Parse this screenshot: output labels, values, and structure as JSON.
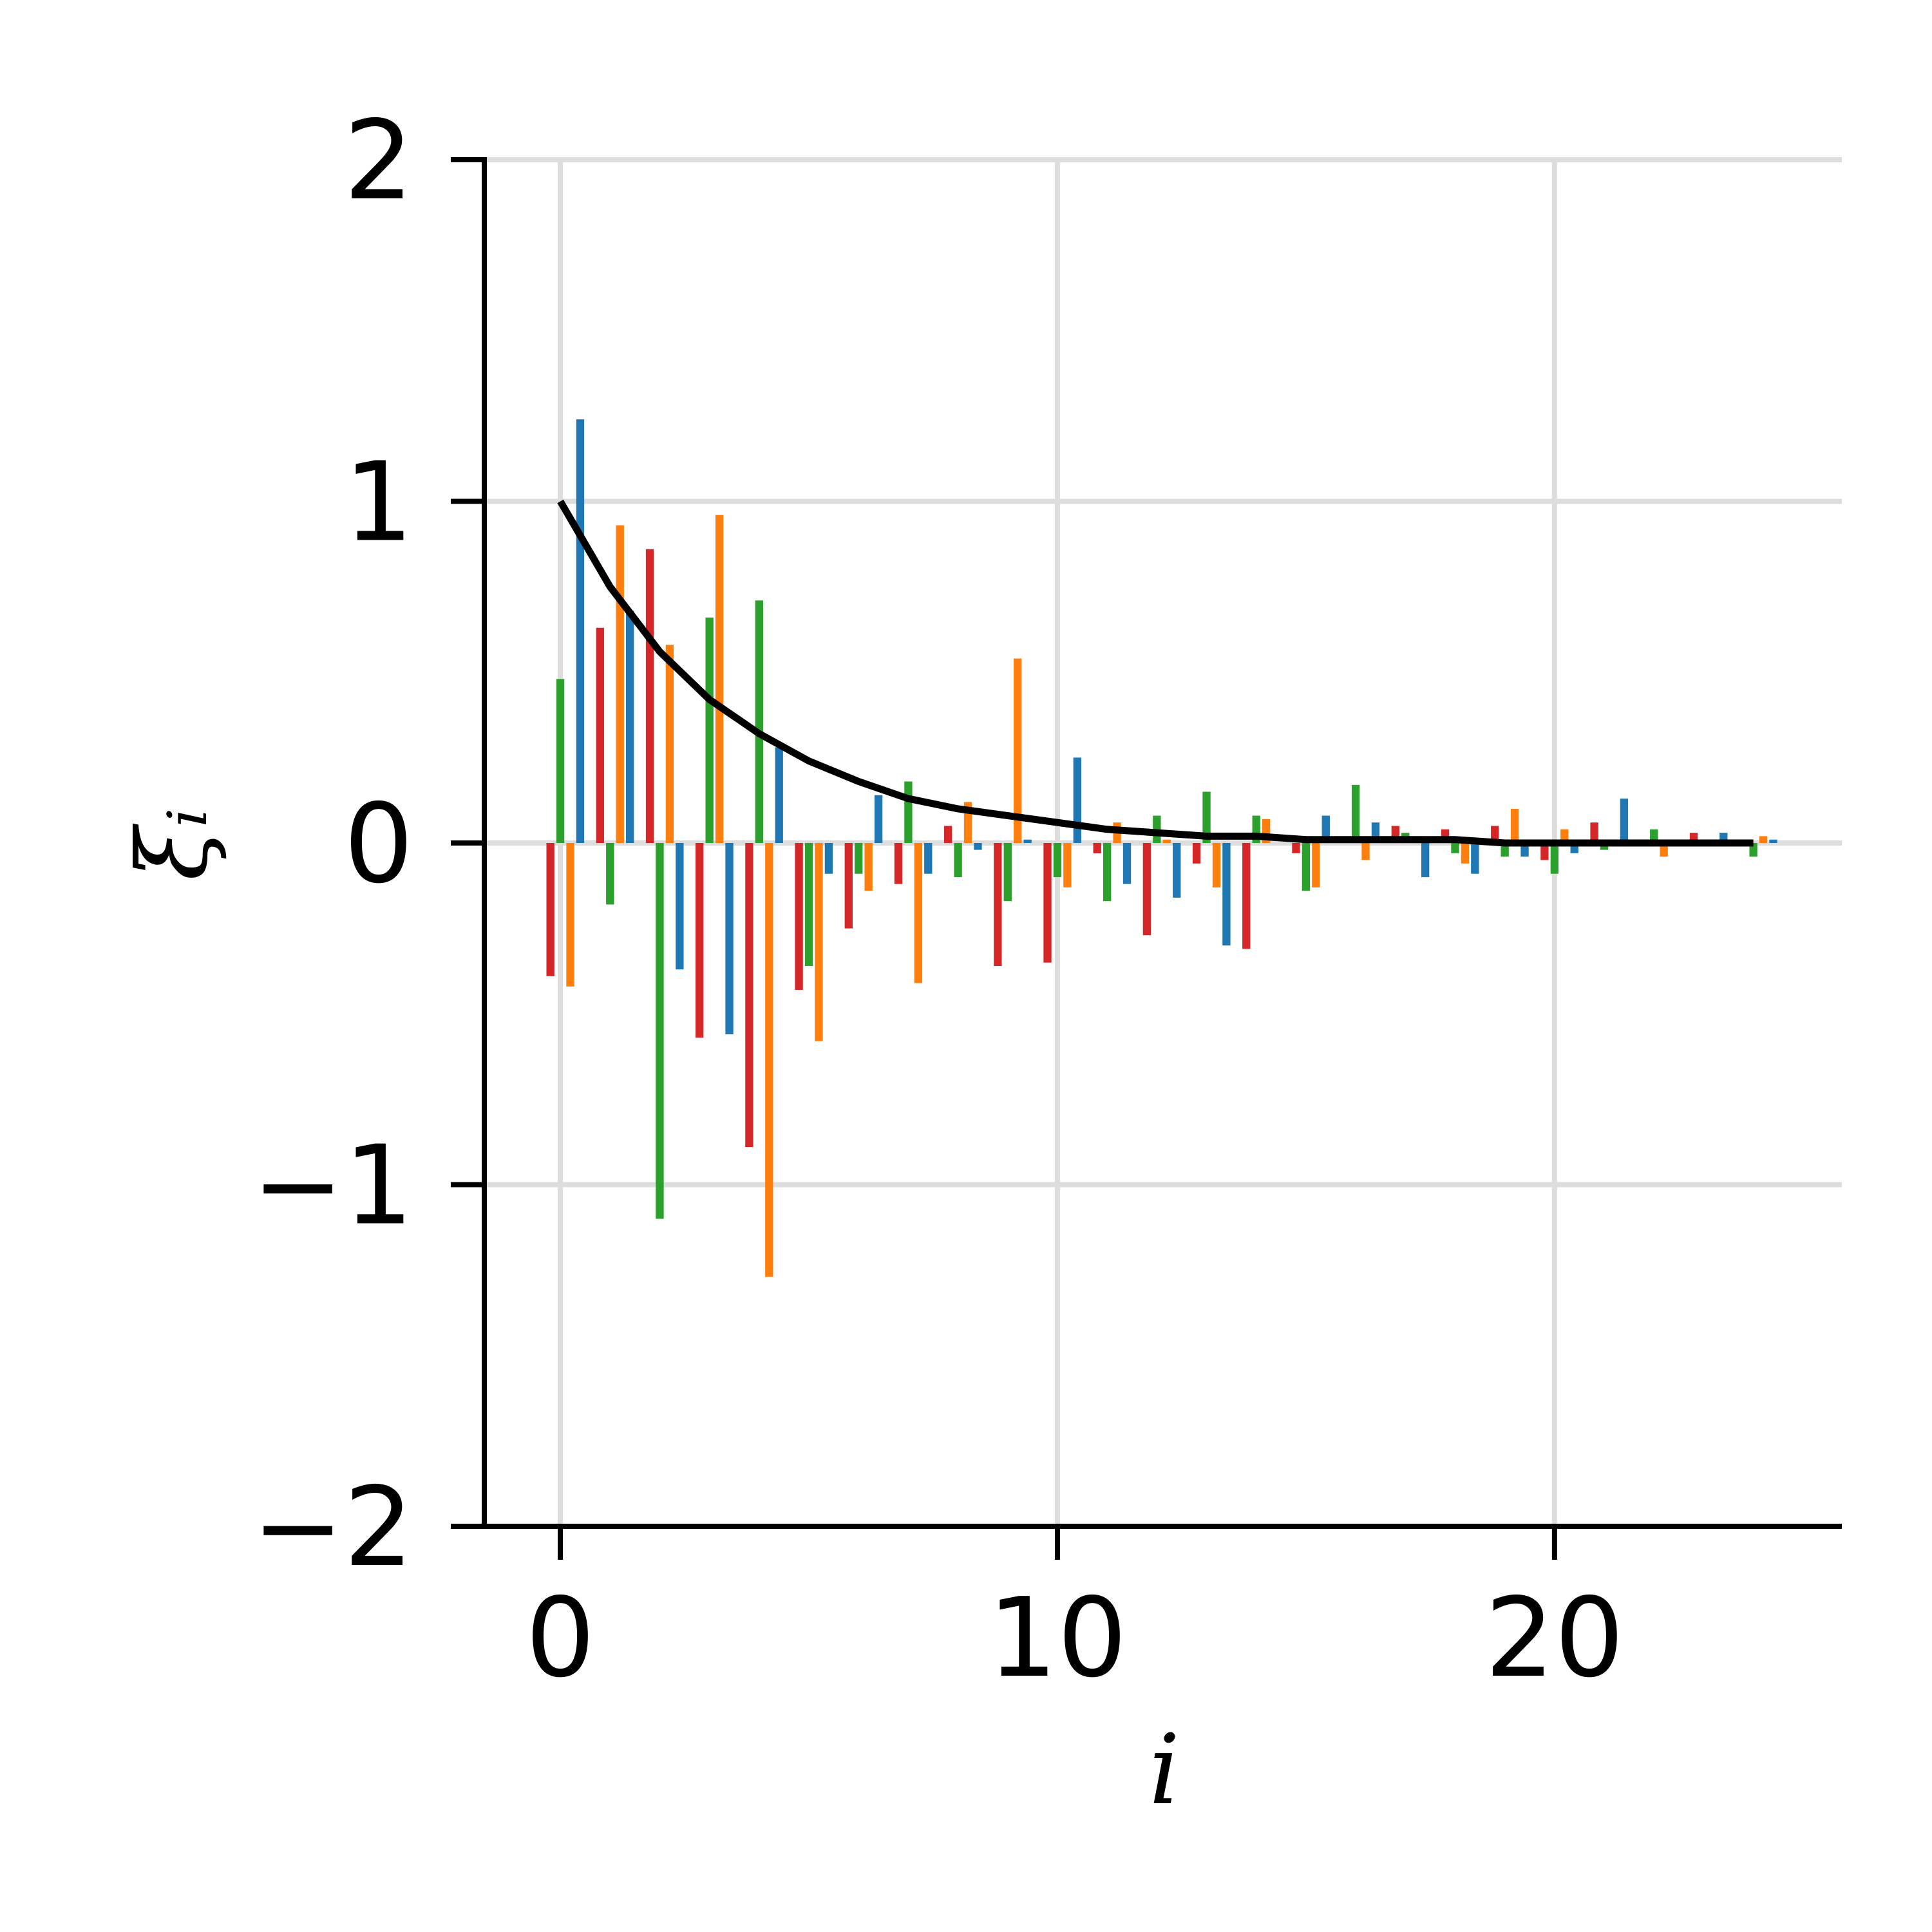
{
  "chart_data": {
    "type": "bar",
    "x_label": "i",
    "y_label": "ξᵢ",
    "categories": [
      0,
      1,
      2,
      3,
      4,
      5,
      6,
      7,
      8,
      9,
      10,
      11,
      12,
      13,
      14,
      15,
      16,
      17,
      18,
      19,
      20,
      21,
      22,
      23,
      24
    ],
    "series": [
      {
        "color": "#d62728",
        "values": [
          -0.39,
          0.63,
          0.86,
          -0.57,
          -0.89,
          -0.43,
          -0.25,
          -0.12,
          0.05,
          -0.36,
          -0.35,
          -0.03,
          -0.27,
          -0.06,
          -0.31,
          -0.03,
          0,
          0.05,
          0.04,
          0.05,
          -0.05,
          0.06,
          0,
          0.03,
          0
        ]
      },
      {
        "color": "#2ca02c",
        "values": [
          0.48,
          -0.18,
          -1.1,
          0.66,
          0.71,
          -0.36,
          -0.09,
          0.18,
          -0.1,
          -0.17,
          -0.1,
          -0.17,
          0.08,
          0.15,
          0.08,
          -0.14,
          0.17,
          0.03,
          -0.03,
          -0.04,
          -0.09,
          -0.02,
          0.04,
          -0.01,
          -0.04
        ]
      },
      {
        "color": "#ff7f0e",
        "values": [
          -0.42,
          0.93,
          0.58,
          0.96,
          -1.27,
          -0.58,
          -0.14,
          -0.41,
          0.12,
          0.54,
          -0.13,
          0.06,
          0.01,
          -0.13,
          0.07,
          -0.13,
          -0.05,
          0,
          -0.06,
          0.1,
          0.04,
          0,
          -0.04,
          0,
          0.02
        ]
      },
      {
        "color": "#1f77b4",
        "values": [
          1.24,
          0.68,
          -0.37,
          -0.56,
          0.28,
          -0.09,
          0.14,
          -0.09,
          -0.02,
          0.01,
          0.25,
          -0.12,
          -0.16,
          -0.3,
          0,
          0.08,
          0.06,
          -0.1,
          -0.09,
          -0.04,
          -0.03,
          0.13,
          0,
          0.03,
          0.01
        ]
      },
      {
        "type": "line",
        "color": "#000000",
        "values": [
          1,
          0.75,
          0.56,
          0.42,
          0.32,
          0.24,
          0.18,
          0.13,
          0.1,
          0.08,
          0.06,
          0.04,
          0.03,
          0.02,
          0.02,
          0.01,
          0.01,
          0.01,
          0.01,
          0,
          0,
          0,
          0,
          0,
          0
        ]
      }
    ],
    "xlim": [
      -1.53,
      25.78
    ],
    "xticks": [
      0,
      10,
      20
    ],
    "ylim": [
      -2,
      2
    ],
    "yticks": [
      {
        "value": -2,
        "label": "−2"
      },
      {
        "value": -1,
        "label": "−1"
      },
      0,
      1,
      2
    ],
    "grid": true
  }
}
